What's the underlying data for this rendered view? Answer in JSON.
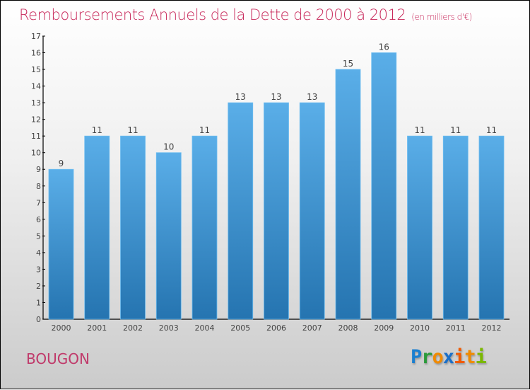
{
  "chart_data": {
    "type": "bar",
    "title": "Remboursements Annuels de la Dette de 2000 à 2012",
    "unit": "(en milliers d'€)",
    "categories": [
      "2000",
      "2001",
      "2002",
      "2003",
      "2004",
      "2005",
      "2006",
      "2007",
      "2008",
      "2009",
      "2010",
      "2011",
      "2012"
    ],
    "values": [
      9,
      11,
      11,
      10,
      11,
      13,
      13,
      13,
      15,
      16,
      11,
      11,
      11
    ],
    "ylim": [
      0,
      17
    ],
    "yticks": [
      0,
      1,
      2,
      3,
      4,
      5,
      6,
      7,
      8,
      9,
      10,
      11,
      12,
      13,
      14,
      15,
      16,
      17
    ],
    "bar_color_top": "#5aaee8",
    "bar_color_bottom": "#2574b0",
    "title_color": "#c8285a"
  },
  "footer": {
    "city": "BOUGON",
    "logo": "Proxiti"
  }
}
